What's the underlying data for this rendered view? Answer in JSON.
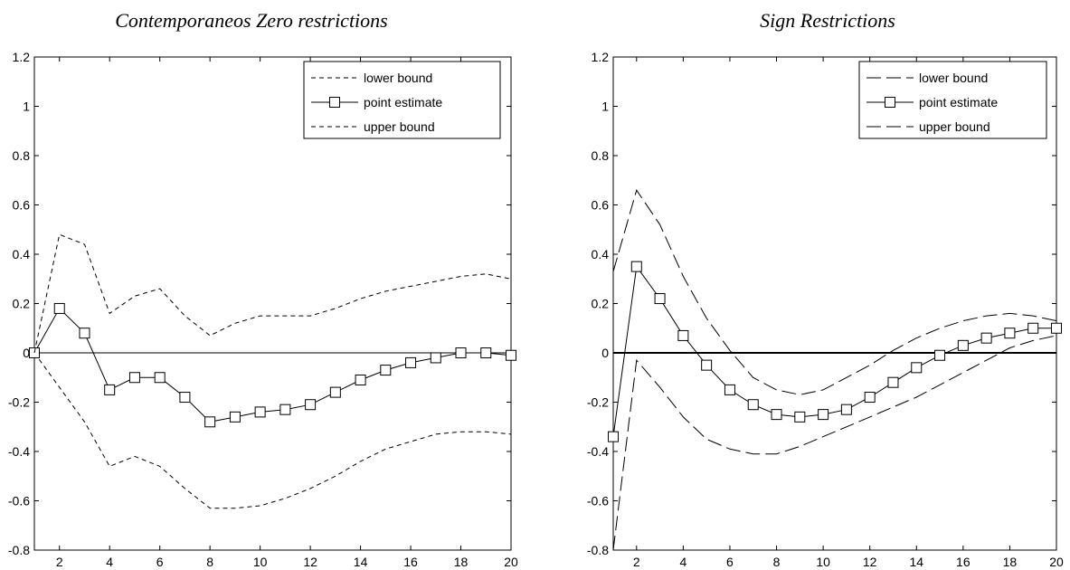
{
  "chart_data": [
    {
      "type": "line",
      "title": "Contemporaneos Zero restrictions",
      "xlim": [
        1,
        20
      ],
      "ylim": [
        -0.8,
        1.2
      ],
      "x_ticks": [
        "2",
        "4",
        "6",
        "8",
        "10",
        "12",
        "14",
        "16",
        "18",
        "20"
      ],
      "y_ticks": [
        "1.2",
        "1",
        "0.8",
        "0.6",
        "0.4",
        "0.2",
        "0",
        "-0.2",
        "-0.4",
        "-0.6",
        "-0.8"
      ],
      "zero_line": "thin",
      "legend_position": "top-right",
      "x": [
        1,
        2,
        3,
        4,
        5,
        6,
        7,
        8,
        9,
        10,
        11,
        12,
        13,
        14,
        15,
        16,
        17,
        18,
        19,
        20
      ],
      "series": [
        {
          "name": "lower bound",
          "style": "dashed",
          "marker": "none",
          "values": [
            0,
            -0.14,
            -0.28,
            -0.46,
            -0.42,
            -0.46,
            -0.55,
            -0.63,
            -0.63,
            -0.62,
            -0.59,
            -0.55,
            -0.5,
            -0.44,
            -0.39,
            -0.36,
            -0.33,
            -0.32,
            -0.32,
            -0.33
          ]
        },
        {
          "name": "point estimate",
          "style": "solid",
          "marker": "square",
          "values": [
            0,
            0.18,
            0.08,
            -0.15,
            -0.1,
            -0.1,
            -0.18,
            -0.28,
            -0.26,
            -0.24,
            -0.23,
            -0.21,
            -0.16,
            -0.11,
            -0.07,
            -0.04,
            -0.02,
            0,
            0,
            -0.01
          ]
        },
        {
          "name": "upper bound",
          "style": "dashed",
          "marker": "none",
          "values": [
            0,
            0.48,
            0.44,
            0.16,
            0.23,
            0.26,
            0.15,
            0.07,
            0.12,
            0.15,
            0.15,
            0.15,
            0.18,
            0.22,
            0.25,
            0.27,
            0.29,
            0.31,
            0.32,
            0.3
          ]
        }
      ]
    },
    {
      "type": "line",
      "title": "Sign Restrictions",
      "xlim": [
        1,
        20
      ],
      "ylim": [
        -0.8,
        1.2
      ],
      "x_ticks": [
        "2",
        "4",
        "6",
        "8",
        "10",
        "12",
        "14",
        "16",
        "18",
        "20"
      ],
      "y_ticks": [
        "1.2",
        "1",
        "0.8",
        "0.6",
        "0.4",
        "0.2",
        "0",
        "-0.2",
        "-0.4",
        "-0.6",
        "-0.8"
      ],
      "zero_line": "thick",
      "legend_position": "top-right",
      "x": [
        1,
        2,
        3,
        4,
        5,
        6,
        7,
        8,
        9,
        10,
        11,
        12,
        13,
        14,
        15,
        16,
        17,
        18,
        19,
        20
      ],
      "series": [
        {
          "name": "lower bound",
          "style": "longdash",
          "marker": "none",
          "values": [
            -0.8,
            -0.03,
            -0.14,
            -0.26,
            -0.35,
            -0.39,
            -0.41,
            -0.41,
            -0.38,
            -0.34,
            -0.3,
            -0.26,
            -0.22,
            -0.18,
            -0.13,
            -0.08,
            -0.03,
            0.02,
            0.05,
            0.07
          ]
        },
        {
          "name": "point estimate",
          "style": "solid",
          "marker": "square",
          "values": [
            -0.34,
            0.35,
            0.22,
            0.07,
            -0.05,
            -0.15,
            -0.21,
            -0.25,
            -0.26,
            -0.25,
            -0.23,
            -0.18,
            -0.12,
            -0.06,
            -0.01,
            0.03,
            0.06,
            0.08,
            0.1,
            0.1
          ]
        },
        {
          "name": "upper bound",
          "style": "longdash",
          "marker": "none",
          "values": [
            0.33,
            0.66,
            0.52,
            0.31,
            0.14,
            0.01,
            -0.1,
            -0.15,
            -0.17,
            -0.15,
            -0.1,
            -0.05,
            0.01,
            0.06,
            0.1,
            0.13,
            0.15,
            0.16,
            0.15,
            0.13
          ]
        }
      ]
    }
  ]
}
